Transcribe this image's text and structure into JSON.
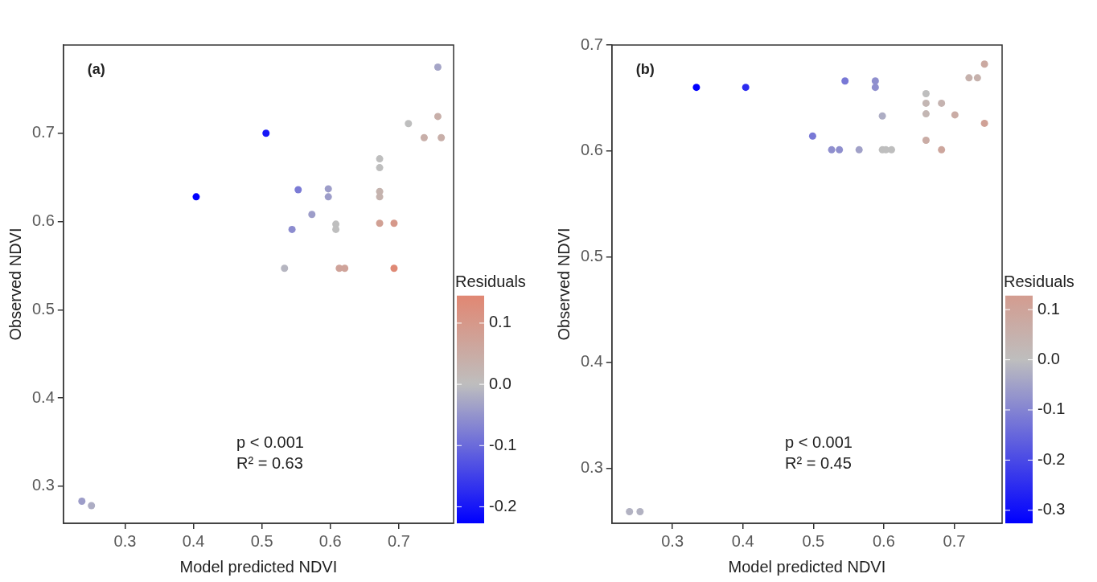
{
  "chart_data": [
    {
      "type": "scatter",
      "xlabel": "Model predicted NDVI",
      "ylabel": "Observed NDVI",
      "clabel": "Residuals",
      "annotations": [
        "(a)",
        "p < 0.001",
        "R² = 0.63"
      ],
      "xlim": [
        0.21,
        0.78
      ],
      "xticks": [
        0.3,
        0.4,
        0.5,
        0.6,
        0.7
      ],
      "ylim": [
        0.258,
        0.8
      ],
      "yticks": [
        0.3,
        0.4,
        0.5,
        0.6,
        0.7
      ],
      "clim": [
        -0.227,
        0.145
      ],
      "cticks": [
        0.1,
        {
          "value": 0,
          "label": "0.0"
        },
        -0.1,
        -0.2
      ],
      "marker": "circle",
      "series": [
        {
          "x": [
            0.237,
            0.251,
            0.404,
            0.506,
            0.553,
            0.544,
            0.573,
            0.597,
            0.597,
            0.757,
            0.533,
            0.608,
            0.608,
            0.672,
            0.672,
            0.714,
            0.672,
            0.672,
            0.737,
            0.762,
            0.757,
            0.672,
            0.693,
            0.613,
            0.621,
            0.693
          ],
          "values": [
            0.283,
            0.278,
            0.628,
            0.7,
            0.636,
            0.591,
            0.608,
            0.637,
            0.628,
            0.775,
            0.547,
            0.597,
            0.591,
            0.671,
            0.661,
            0.711,
            0.634,
            0.628,
            0.695,
            0.695,
            0.719,
            0.598,
            0.598,
            0.547,
            0.547,
            0.547
          ],
          "cvalues": [
            -0.04,
            -0.02,
            -0.227,
            -0.2,
            -0.08,
            -0.06,
            -0.04,
            -0.04,
            -0.04,
            -0.03,
            -0.01,
            0,
            0,
            0,
            0,
            0,
            0.03,
            0.03,
            0.04,
            0.04,
            0.04,
            0.08,
            0.1,
            0.07,
            0.07,
            0.14
          ]
        }
      ]
    },
    {
      "type": "scatter",
      "xlabel": "Model predicted NDVI",
      "ylabel": "Observed NDVI",
      "clabel": "Residuals",
      "annotations": [
        "(b)",
        "p < 0.001",
        "R² = 0.45"
      ],
      "xlim": [
        0.214,
        0.768
      ],
      "xticks": [
        0.3,
        0.4,
        0.5,
        0.6,
        0.7
      ],
      "ylim": [
        0.248,
        0.7
      ],
      "yticks": [
        0.3,
        0.4,
        0.5,
        0.6,
        0.7
      ],
      "clim": [
        -0.326,
        0.128
      ],
      "cticks": [
        0.1,
        {
          "value": 0,
          "label": "0.0"
        },
        -0.1,
        -0.2,
        -0.3
      ],
      "marker": "circle",
      "series": [
        {
          "x": [
            0.239,
            0.254,
            0.334,
            0.404,
            0.545,
            0.588,
            0.588,
            0.499,
            0.526,
            0.537,
            0.565,
            0.598,
            0.598,
            0.603,
            0.611,
            0.66,
            0.66,
            0.66,
            0.682,
            0.701,
            0.66,
            0.682,
            0.721,
            0.733,
            0.743,
            0.743
          ],
          "values": [
            0.259,
            0.259,
            0.66,
            0.66,
            0.666,
            0.666,
            0.66,
            0.614,
            0.601,
            0.601,
            0.601,
            0.633,
            0.601,
            0.601,
            0.601,
            0.654,
            0.645,
            0.635,
            0.645,
            0.634,
            0.61,
            0.601,
            0.669,
            0.669,
            0.682,
            0.626
          ],
          "cvalues": [
            -0.02,
            -0.02,
            -0.326,
            -0.25,
            -0.12,
            -0.08,
            -0.08,
            -0.12,
            -0.08,
            -0.08,
            -0.05,
            -0.03,
            0,
            0,
            0,
            0,
            0.03,
            0.03,
            0.04,
            0.07,
            0.07,
            0.09,
            0.05,
            0.05,
            0.08,
            0.11
          ]
        }
      ]
    }
  ]
}
